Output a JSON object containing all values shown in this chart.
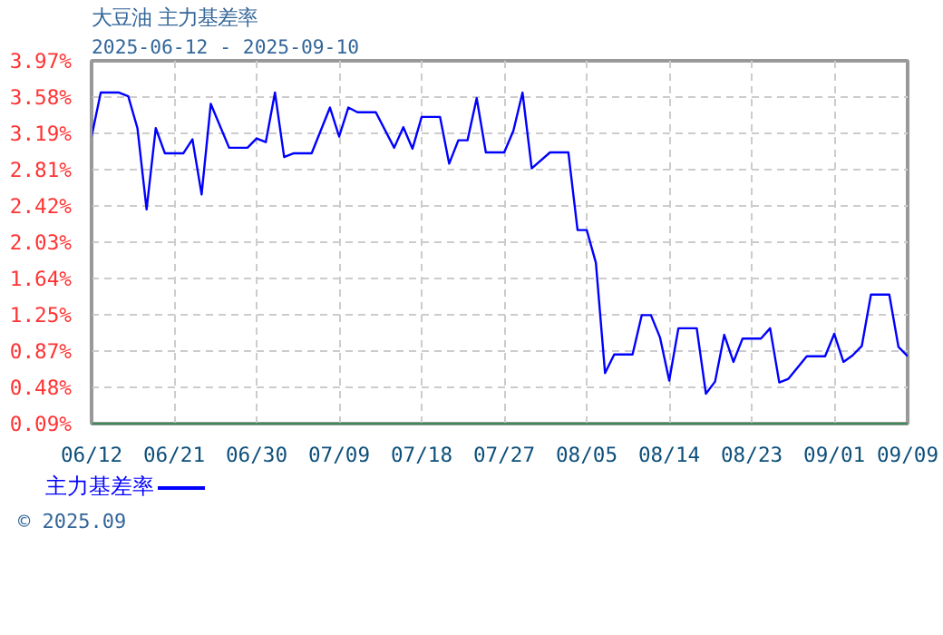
{
  "chart_data": {
    "type": "line",
    "title": "大豆油  主力基差率",
    "subtitle": "2025-06-12 - 2025-09-10",
    "x": [
      "2025-06-12",
      "2025-06-13",
      "2025-06-15",
      "2025-06-16",
      "2025-06-17",
      "2025-06-18",
      "2025-06-19",
      "2025-06-20",
      "2025-06-22",
      "2025-06-23",
      "2025-06-24",
      "2025-06-25",
      "2025-06-27",
      "2025-06-29",
      "2025-06-30",
      "2025-07-01",
      "2025-07-02",
      "2025-07-03",
      "2025-07-04",
      "2025-07-06",
      "2025-07-08",
      "2025-07-09",
      "2025-07-10",
      "2025-07-11",
      "2025-07-13",
      "2025-07-15",
      "2025-07-16",
      "2025-07-17",
      "2025-07-18",
      "2025-07-20",
      "2025-07-21",
      "2025-07-22",
      "2025-07-23",
      "2025-07-24",
      "2025-07-25",
      "2025-07-27",
      "2025-07-28",
      "2025-07-29",
      "2025-07-30",
      "2025-08-01",
      "2025-08-03",
      "2025-08-04",
      "2025-08-05",
      "2025-08-06",
      "2025-08-07",
      "2025-08-08",
      "2025-08-10",
      "2025-08-11",
      "2025-08-12",
      "2025-08-13",
      "2025-08-14",
      "2025-08-15",
      "2025-08-17",
      "2025-08-18",
      "2025-08-19",
      "2025-08-20",
      "2025-08-21",
      "2025-08-22",
      "2025-08-24",
      "2025-08-25",
      "2025-08-26",
      "2025-08-27",
      "2025-08-29",
      "2025-08-31",
      "2025-09-01",
      "2025-09-02",
      "2025-09-03",
      "2025-09-04",
      "2025-09-05",
      "2025-09-07",
      "2025-09-08",
      "2025-09-09"
    ],
    "series": [
      {
        "name": "主力基差率",
        "color": "#0000ff",
        "values": [
          3.16,
          3.63,
          3.63,
          3.59,
          3.25,
          2.38,
          3.25,
          2.98,
          2.98,
          3.13,
          2.54,
          3.51,
          3.04,
          3.04,
          3.14,
          3.1,
          3.63,
          2.94,
          2.98,
          2.98,
          3.47,
          3.16,
          3.47,
          3.42,
          3.42,
          3.04,
          3.26,
          3.03,
          3.37,
          3.37,
          2.87,
          3.12,
          3.12,
          3.57,
          2.99,
          2.99,
          3.22,
          3.63,
          2.82,
          2.99,
          2.99,
          2.16,
          2.16,
          1.81,
          0.63,
          0.83,
          0.83,
          1.25,
          1.25,
          1.01,
          0.55,
          1.11,
          1.11,
          0.41,
          0.54,
          1.04,
          0.75,
          1.0,
          1.0,
          1.11,
          0.53,
          0.57,
          0.81,
          0.81,
          1.05,
          0.75,
          0.82,
          0.92,
          1.47,
          1.47,
          0.91,
          0.81
        ]
      }
    ],
    "xlim": [
      "2025-06-12",
      "2025-09-09"
    ],
    "xticks": [
      {
        "value": "2025-06-12",
        "label": "06/12"
      },
      {
        "value": "2025-06-21",
        "label": "06/21"
      },
      {
        "value": "2025-06-30",
        "label": "06/30"
      },
      {
        "value": "2025-07-09",
        "label": "07/09"
      },
      {
        "value": "2025-07-18",
        "label": "07/18"
      },
      {
        "value": "2025-07-27",
        "label": "07/27"
      },
      {
        "value": "2025-08-05",
        "label": "08/05"
      },
      {
        "value": "2025-08-14",
        "label": "08/14"
      },
      {
        "value": "2025-08-23",
        "label": "08/23"
      },
      {
        "value": "2025-09-01",
        "label": "09/01"
      },
      {
        "value": "2025-09-09",
        "label": "09/09"
      }
    ],
    "ylim": [
      0.09,
      3.97
    ],
    "yticks": [
      {
        "value": 0.09,
        "label": "0.09%"
      },
      {
        "value": 0.48,
        "label": "0.48%"
      },
      {
        "value": 0.87,
        "label": "0.87%"
      },
      {
        "value": 1.25,
        "label": "1.25%"
      },
      {
        "value": 1.64,
        "label": "1.64%"
      },
      {
        "value": 2.03,
        "label": "2.03%"
      },
      {
        "value": 2.42,
        "label": "2.42%"
      },
      {
        "value": 2.81,
        "label": "2.81%"
      },
      {
        "value": 3.19,
        "label": "3.19%"
      },
      {
        "value": 3.58,
        "label": "3.58%"
      },
      {
        "value": 3.97,
        "label": "3.97%"
      }
    ],
    "grid": true,
    "legend": "bottom left",
    "marker": "none",
    "line_style": "solid",
    "annotations": [
      "© 2025.09"
    ]
  }
}
